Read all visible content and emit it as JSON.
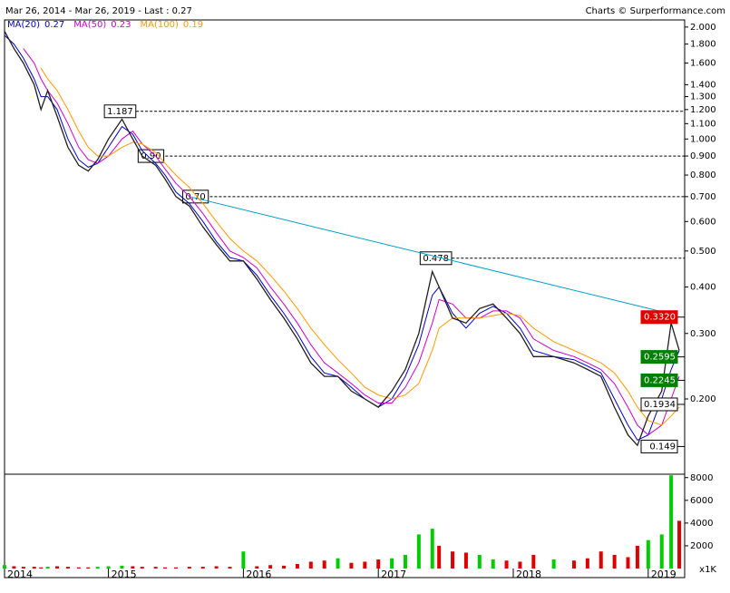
{
  "chart_data": {
    "type": "stock",
    "title": "Mar 26, 2014 - Mar 26, 2019 - Last : 0.27",
    "credit": "Charts © Surperformance.com",
    "log_scale": true,
    "xlim": [
      2014.23,
      2019.27
    ],
    "xticks": [
      {
        "value": 2014.23,
        "label": "2014"
      },
      2015,
      2016,
      2017,
      2018,
      2019
    ],
    "ylim": [
      0.1255,
      2.09
    ],
    "yticks": [
      {
        "value": 2.0,
        "label": "2.000"
      },
      {
        "value": 1.8,
        "label": "1.800"
      },
      {
        "value": 1.6,
        "label": "1.600"
      },
      {
        "value": 1.4,
        "label": "1.400"
      },
      {
        "value": 1.3,
        "label": "1.300"
      },
      {
        "value": 1.2,
        "label": "1.200"
      },
      {
        "value": 1.1,
        "label": "1.100"
      },
      {
        "value": 1.0,
        "label": "1.000"
      },
      {
        "value": 0.9,
        "label": "0.900"
      },
      {
        "value": 0.8,
        "label": "0.800"
      },
      {
        "value": 0.7,
        "label": "0.700"
      },
      {
        "value": 0.6,
        "label": "0.600"
      },
      {
        "value": 0.5,
        "label": "0.500"
      },
      {
        "value": 0.4,
        "label": "0.400"
      },
      {
        "value": 0.3,
        "label": "0.300"
      },
      {
        "value": 0.2,
        "label": "0.200"
      }
    ],
    "x": [
      2014.23,
      2014.3,
      2014.37,
      2014.45,
      2014.5,
      2014.55,
      2014.62,
      2014.7,
      2014.78,
      2014.85,
      2014.92,
      2015.0,
      2015.1,
      2015.18,
      2015.25,
      2015.35,
      2015.42,
      2015.5,
      2015.6,
      2015.7,
      2015.8,
      2015.9,
      2016.0,
      2016.1,
      2016.2,
      2016.3,
      2016.4,
      2016.5,
      2016.6,
      2016.7,
      2016.8,
      2016.9,
      2017.0,
      2017.1,
      2017.2,
      2017.3,
      2017.4,
      2017.45,
      2017.55,
      2017.65,
      2017.75,
      2017.85,
      2017.95,
      2018.05,
      2018.15,
      2018.3,
      2018.45,
      2018.55,
      2018.65,
      2018.75,
      2018.85,
      2018.92,
      2019.0,
      2019.1,
      2019.17,
      2019.23
    ],
    "close": {
      "color": "#202020",
      "values": [
        1.95,
        1.75,
        1.6,
        1.4,
        1.2,
        1.35,
        1.15,
        0.95,
        0.85,
        0.82,
        0.88,
        1.0,
        1.13,
        1.0,
        0.9,
        0.85,
        0.78,
        0.7,
        0.66,
        0.58,
        0.52,
        0.47,
        0.47,
        0.42,
        0.37,
        0.33,
        0.29,
        0.25,
        0.23,
        0.23,
        0.21,
        0.2,
        0.19,
        0.21,
        0.24,
        0.3,
        0.44,
        0.4,
        0.33,
        0.32,
        0.35,
        0.36,
        0.33,
        0.3,
        0.26,
        0.26,
        0.25,
        0.24,
        0.23,
        0.19,
        0.16,
        0.15,
        0.18,
        0.21,
        0.32,
        0.27
      ]
    },
    "series": [
      {
        "name": "MA(20)",
        "last": 0.27,
        "color": "#0000cc",
        "values": [
          1.9,
          1.8,
          1.65,
          1.45,
          1.3,
          1.3,
          1.2,
          1.0,
          0.88,
          0.84,
          0.86,
          0.95,
          1.08,
          1.03,
          0.93,
          0.86,
          0.8,
          0.72,
          0.67,
          0.6,
          0.53,
          0.48,
          0.47,
          0.43,
          0.38,
          0.34,
          0.3,
          0.26,
          0.235,
          0.23,
          0.215,
          0.2,
          0.19,
          0.2,
          0.23,
          0.28,
          0.38,
          0.4,
          0.34,
          0.31,
          0.34,
          0.355,
          0.34,
          0.31,
          0.27,
          0.26,
          0.255,
          0.245,
          0.235,
          0.2,
          0.17,
          0.155,
          0.16,
          0.2,
          0.24,
          0.27
        ]
      },
      {
        "name": "MA(50)",
        "last": 0.23,
        "color": "#cc00cc",
        "values": [
          null,
          null,
          1.75,
          1.6,
          1.45,
          1.35,
          1.25,
          1.1,
          0.95,
          0.88,
          0.86,
          0.9,
          1.0,
          1.05,
          0.97,
          0.9,
          0.83,
          0.76,
          0.7,
          0.63,
          0.56,
          0.5,
          0.48,
          0.45,
          0.4,
          0.36,
          0.32,
          0.28,
          0.25,
          0.235,
          0.22,
          0.205,
          0.195,
          0.195,
          0.215,
          0.25,
          0.32,
          0.37,
          0.36,
          0.33,
          0.33,
          0.345,
          0.345,
          0.33,
          0.29,
          0.27,
          0.26,
          0.25,
          0.24,
          0.22,
          0.19,
          0.17,
          0.16,
          0.17,
          0.2,
          0.23
        ]
      },
      {
        "name": "MA(100)",
        "last": 0.19,
        "color": "#ff9900",
        "values": [
          null,
          null,
          null,
          null,
          1.55,
          1.45,
          1.35,
          1.2,
          1.05,
          0.95,
          0.9,
          0.9,
          0.95,
          0.98,
          0.97,
          0.92,
          0.86,
          0.8,
          0.74,
          0.67,
          0.6,
          0.54,
          0.5,
          0.47,
          0.43,
          0.39,
          0.35,
          0.31,
          0.28,
          0.255,
          0.235,
          0.215,
          0.205,
          0.2,
          0.205,
          0.22,
          0.27,
          0.31,
          0.33,
          0.33,
          0.33,
          0.335,
          0.34,
          0.335,
          0.31,
          0.285,
          0.27,
          0.26,
          0.25,
          0.235,
          0.21,
          0.19,
          0.175,
          0.17,
          0.18,
          0.19
        ]
      }
    ],
    "levels": [
      {
        "value": 1.187,
        "label": "1.187",
        "x": 2014.97
      },
      {
        "value": 0.9,
        "label": "0.90",
        "x": 2015.22
      },
      {
        "value": 0.7,
        "label": "0.70",
        "x": 2015.55
      },
      {
        "value": 0.478,
        "label": "0.478",
        "x": 2017.31
      }
    ],
    "trendline": {
      "color": "#00a0c8",
      "x": [
        2015.6,
        2019.15
      ],
      "values": [
        0.7,
        0.34
      ]
    },
    "price_boxes": [
      {
        "value": 0.332,
        "label": "0.3320",
        "color": "#e00000"
      },
      {
        "value": 0.2595,
        "label": "0.2595",
        "color": "#008000"
      },
      {
        "value": 0.2245,
        "label": "0.2245",
        "color": "#008000"
      },
      {
        "value": 0.1934,
        "label": "0.1934",
        "color": "#ffffff"
      },
      {
        "value": 0.149,
        "label": "0.149",
        "color": "#ffffff"
      }
    ],
    "volume": {
      "unit": "x1K",
      "ylim": [
        0,
        8300
      ],
      "yticks": [
        2000,
        4000,
        6000,
        8000
      ],
      "values": [
        300,
        200,
        150,
        150,
        100,
        150,
        200,
        150,
        100,
        100,
        150,
        200,
        250,
        200,
        150,
        150,
        100,
        100,
        150,
        150,
        200,
        150,
        1500,
        200,
        300,
        250,
        400,
        600,
        700,
        900,
        500,
        600,
        800,
        900,
        1200,
        3000,
        3500,
        2000,
        1500,
        1400,
        1200,
        800,
        700,
        600,
        1200,
        800,
        700,
        900,
        1500,
        1200,
        1000,
        2000,
        2500,
        3000,
        8200,
        4200
      ]
    }
  }
}
